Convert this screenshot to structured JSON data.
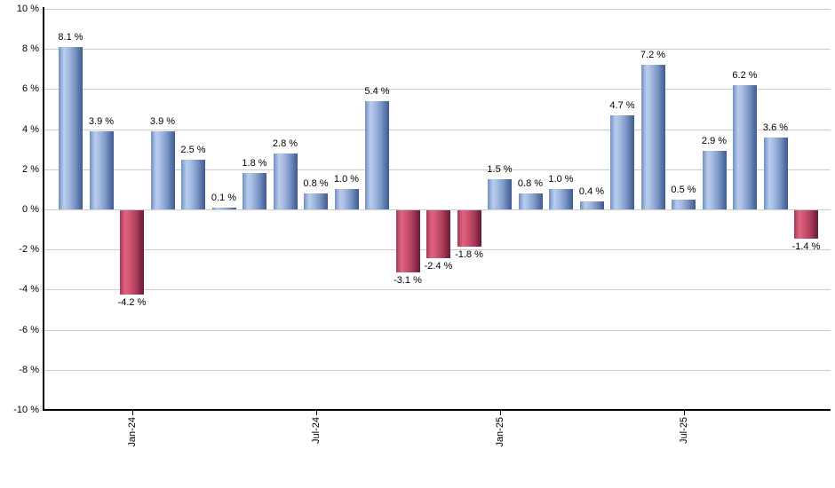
{
  "chart_data": {
    "type": "bar",
    "title": "",
    "xlabel": "",
    "ylabel": "",
    "ylim": [
      -10,
      10
    ],
    "y_tick_step": 2,
    "grid": true,
    "legend": null,
    "y_tick_labels": [
      "10 %",
      "8 %",
      "6 %",
      "4 %",
      "2 %",
      "0 %",
      "-2 %",
      "-4 %",
      "-6 %",
      "-8 %",
      "-10 %"
    ],
    "bars": [
      {
        "value": 8.1,
        "label": "8.1 %"
      },
      {
        "value": 3.9,
        "label": "3.9 %"
      },
      {
        "value": -4.2,
        "label": "-4.2 %"
      },
      {
        "value": 3.9,
        "label": "3.9 %"
      },
      {
        "value": 2.5,
        "label": "2.5 %"
      },
      {
        "value": 0.1,
        "label": "0.1 %"
      },
      {
        "value": 1.8,
        "label": "1.8 %"
      },
      {
        "value": 2.8,
        "label": "2.8 %"
      },
      {
        "value": 0.8,
        "label": "0.8 %"
      },
      {
        "value": 1.0,
        "label": "1.0 %"
      },
      {
        "value": 5.4,
        "label": "5.4 %"
      },
      {
        "value": -3.1,
        "label": "-3.1 %"
      },
      {
        "value": -2.4,
        "label": "-2.4 %"
      },
      {
        "value": -1.8,
        "label": "-1.8 %"
      },
      {
        "value": 1.5,
        "label": "1.5 %"
      },
      {
        "value": 0.8,
        "label": "0.8 %"
      },
      {
        "value": 1.0,
        "label": "1.0 %"
      },
      {
        "value": 0.4,
        "label": "0.4 %"
      },
      {
        "value": 4.7,
        "label": "4.7 %"
      },
      {
        "value": 7.2,
        "label": "7.2 %"
      },
      {
        "value": 0.5,
        "label": "0.5 %"
      },
      {
        "value": 2.9,
        "label": "2.9 %"
      },
      {
        "value": 6.2,
        "label": "6.2 %"
      },
      {
        "value": 3.6,
        "label": "3.6 %"
      },
      {
        "value": -1.4,
        "label": "-1.4 %"
      }
    ],
    "x_ticks": [
      {
        "label": "Jan-24",
        "bar_index": 2
      },
      {
        "label": "Jul-24",
        "bar_index": 8
      },
      {
        "label": "Jan-25",
        "bar_index": 14
      },
      {
        "label": "Jul-25",
        "bar_index": 20
      }
    ],
    "colors": {
      "positive_bar_edge": "#3f5a94",
      "positive_bar_light": "#b9cdec",
      "negative_bar_edge": "#6f1c36",
      "negative_bar_light": "#e26380",
      "gridline": "#cccccc",
      "axis": "#000000",
      "text": "#000000",
      "background": "#ffffff"
    }
  }
}
